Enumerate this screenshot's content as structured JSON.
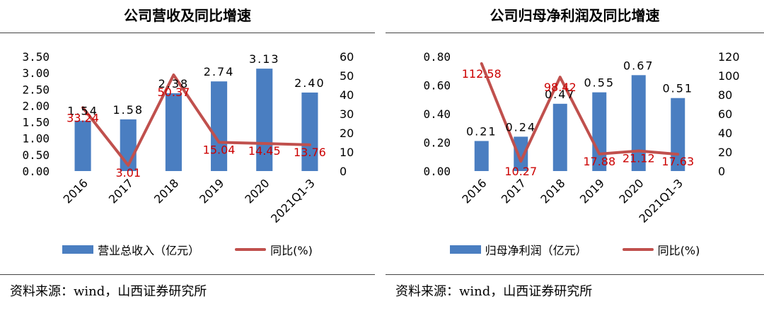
{
  "colors": {
    "bar": "#4a7ec1",
    "line": "#c0504d",
    "axis_text": "#000000",
    "value_label": "#000000",
    "pct_label": "#cc0000"
  },
  "charts": [
    {
      "title": "公司营收及同比增速",
      "source": "资料来源：wind，山西证券研究所",
      "legend": {
        "bar": "营业总收入（亿元）",
        "line": "同比(%)"
      }
    },
    {
      "title": "公司归母净利润及同比增速",
      "source": "资料来源：wind，山西证券研究所",
      "legend": {
        "bar": "归母净利润（亿元）",
        "line": "同比(%)"
      }
    }
  ],
  "chart_data": [
    {
      "type": "bar",
      "title": "公司营收及同比增速",
      "categories": [
        "2016",
        "2017",
        "2018",
        "2019",
        "2020",
        "2021Q1-3"
      ],
      "series": [
        {
          "name": "营业总收入（亿元）",
          "type": "bar",
          "axis": "left",
          "values": [
            1.54,
            1.58,
            2.38,
            2.74,
            3.13,
            2.4
          ],
          "labels": [
            "1.54",
            "1.58",
            "2.38",
            "2.74",
            "3.13",
            "2.40"
          ]
        },
        {
          "name": "同比(%)",
          "type": "line",
          "axis": "right",
          "values": [
            33.24,
            3.01,
            50.37,
            15.04,
            14.45,
            13.76
          ],
          "labels": [
            "33.24",
            "3.01",
            "50.37",
            "15.04",
            "14.45",
            "13.76"
          ]
        }
      ],
      "ylim_left": [
        0,
        3.5
      ],
      "yticks_left": [
        "0.00",
        "0.50",
        "1.00",
        "1.50",
        "2.00",
        "2.50",
        "3.00",
        "3.50"
      ],
      "ylim_right": [
        0,
        60
      ],
      "yticks_right": [
        "0",
        "10",
        "20",
        "30",
        "40",
        "50",
        "60"
      ]
    },
    {
      "type": "bar",
      "title": "公司归母净利润及同比增速",
      "categories": [
        "2016",
        "2017",
        "2018",
        "2019",
        "2020",
        "2021Q1-3"
      ],
      "series": [
        {
          "name": "归母净利润（亿元）",
          "type": "bar",
          "axis": "left",
          "values": [
            0.21,
            0.24,
            0.47,
            0.55,
            0.67,
            0.51
          ],
          "labels": [
            "0.21",
            "0.24",
            "0.47",
            "0.55",
            "0.67",
            "0.51"
          ]
        },
        {
          "name": "同比(%)",
          "type": "line",
          "axis": "right",
          "values": [
            112.58,
            10.27,
            98.42,
            17.88,
            21.12,
            17.63
          ],
          "labels": [
            "112.58",
            "10.27",
            "98.42",
            "17.88",
            "21.12",
            "17.63"
          ]
        }
      ],
      "ylim_left": [
        0,
        0.8
      ],
      "yticks_left": [
        "0.00",
        "0.20",
        "0.40",
        "0.60",
        "0.80"
      ],
      "ylim_right": [
        0,
        120
      ],
      "yticks_right": [
        "0",
        "20",
        "40",
        "60",
        "80",
        "100",
        "120"
      ]
    }
  ]
}
